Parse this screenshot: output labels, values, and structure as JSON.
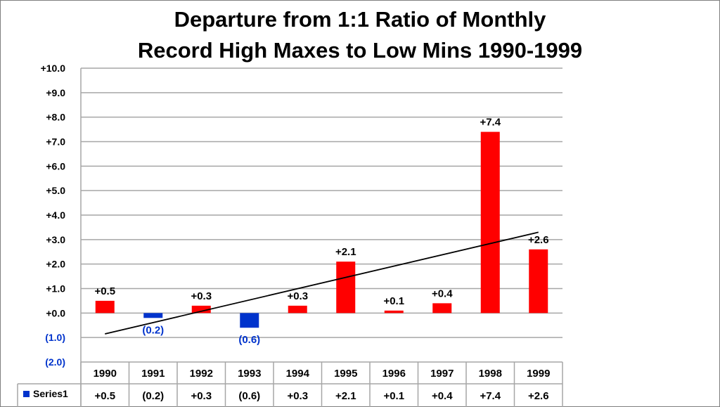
{
  "chart_data": {
    "type": "bar",
    "title_line1": "Departure from 1:1 Ratio of Monthly",
    "title_line2": "Record High Maxes to Low Mins 1990-1999",
    "categories": [
      "1990",
      "1991",
      "1992",
      "1993",
      "1994",
      "1995",
      "1996",
      "1997",
      "1998",
      "1999"
    ],
    "series": [
      {
        "name": "Series1",
        "values": [
          0.5,
          -0.2,
          0.3,
          -0.6,
          0.3,
          2.1,
          0.1,
          0.4,
          7.4,
          2.6
        ],
        "labels": [
          "+0.5",
          "(0.2)",
          "+0.3",
          "(0.6)",
          "+0.3",
          "+2.1",
          "+0.1",
          "+0.4",
          "+7.4",
          "+2.6"
        ]
      }
    ],
    "ylim": [
      -2.0,
      10.0
    ],
    "yticks": [
      "+10.0",
      "+9.0",
      "+8.0",
      "+7.0",
      "+6.0",
      "+5.0",
      "+4.0",
      "+3.0",
      "+2.0",
      "+1.0",
      "+0.0",
      "(1.0)",
      "(2.0)"
    ],
    "ytick_values": [
      10,
      9,
      8,
      7,
      6,
      5,
      4,
      3,
      2,
      1,
      0,
      -1,
      -2
    ],
    "trendline": {
      "type": "linear",
      "start": -0.85,
      "end": 3.3
    },
    "grid": true,
    "data_table": true,
    "legend": "data-table",
    "colors": {
      "positive": "#ff0000",
      "negative": "#0033cc",
      "negative_label": "#0033cc",
      "grid": "#a6a6a6",
      "trend": "#000000"
    }
  }
}
